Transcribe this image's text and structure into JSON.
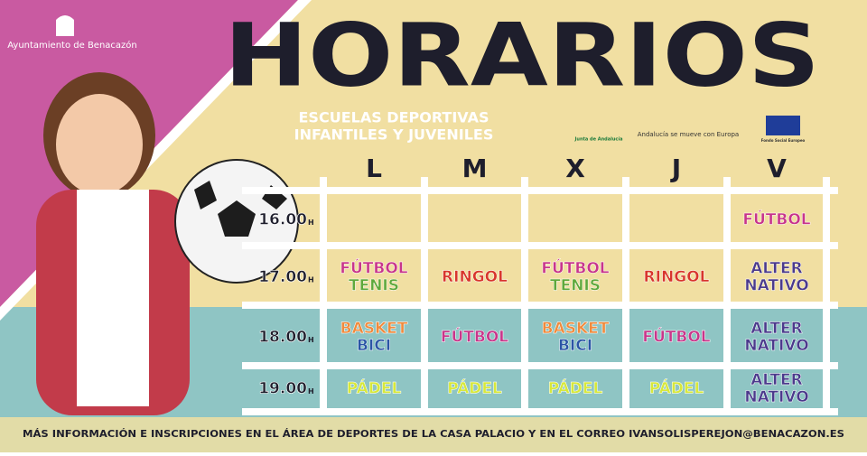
{
  "header": {
    "logo_text": "Ayuntamiento de Benacazón",
    "title": "HORARIOS",
    "subtitle": [
      "ESCUELAS DEPORTIVAS",
      "INFANTILES Y JUVENILES"
    ],
    "partners": [
      "Junta de Andalucía",
      "Andalucía se mueve con Europa",
      "Fondo Social Europeo"
    ]
  },
  "table": {
    "days": [
      "L",
      "M",
      "X",
      "J",
      "V"
    ],
    "rows": [
      {
        "time": "16.00",
        "unit": "H",
        "cells": [
          [],
          [],
          [],
          [],
          [
            {
              "text": "FÚTBOL",
              "color": "#c8358a"
            }
          ]
        ]
      },
      {
        "time": "17.00",
        "unit": "H",
        "cells": [
          [
            {
              "text": "FÚTBOL",
              "color": "#c8358a"
            },
            {
              "text": "TENIS",
              "color": "#5fa83a"
            }
          ],
          [
            {
              "text": "RINGOL",
              "color": "#d8362c"
            }
          ],
          [
            {
              "text": "FÚTBOL",
              "color": "#c8358a"
            },
            {
              "text": "TENIS",
              "color": "#5fa83a"
            }
          ],
          [
            {
              "text": "RINGOL",
              "color": "#d8362c"
            }
          ],
          [
            {
              "text": "ALTER",
              "color": "#4b3a8c"
            },
            {
              "text": "NATIVO",
              "color": "#4b3a8c"
            }
          ]
        ]
      },
      {
        "time": "18.00",
        "unit": "H",
        "cells": [
          [
            {
              "text": "BASKET",
              "color": "#f08a3c"
            },
            {
              "text": "BICI",
              "color": "#2a55a5"
            }
          ],
          [
            {
              "text": "FÚTBOL",
              "color": "#c8358a"
            }
          ],
          [
            {
              "text": "BASKET",
              "color": "#f08a3c"
            },
            {
              "text": "BICI",
              "color": "#2a55a5"
            }
          ],
          [
            {
              "text": "FÚTBOL",
              "color": "#c8358a"
            }
          ],
          [
            {
              "text": "ALTER",
              "color": "#4b3a8c"
            },
            {
              "text": "NATIVO",
              "color": "#4b3a8c"
            }
          ]
        ]
      },
      {
        "time": "19.00",
        "unit": "H",
        "cells": [
          [
            {
              "text": "PÁDEL",
              "color": "#d7e83a"
            }
          ],
          [
            {
              "text": "PÁDEL",
              "color": "#d7e83a"
            }
          ],
          [
            {
              "text": "PÁDEL",
              "color": "#d7e83a"
            }
          ],
          [
            {
              "text": "PÁDEL",
              "color": "#d7e83a"
            }
          ],
          [
            {
              "text": "ALTER",
              "color": "#4b3a8c"
            },
            {
              "text": "NATIVO",
              "color": "#4b3a8c"
            }
          ]
        ]
      }
    ]
  },
  "footer": "MÁS INFORMACIÓN E INSCRIPCIONES EN EL ÁREA DE DEPORTES DE LA CASA PALACIO Y EN EL CORREO IVANSOLISPEREJON@BENACAZON.ES"
}
